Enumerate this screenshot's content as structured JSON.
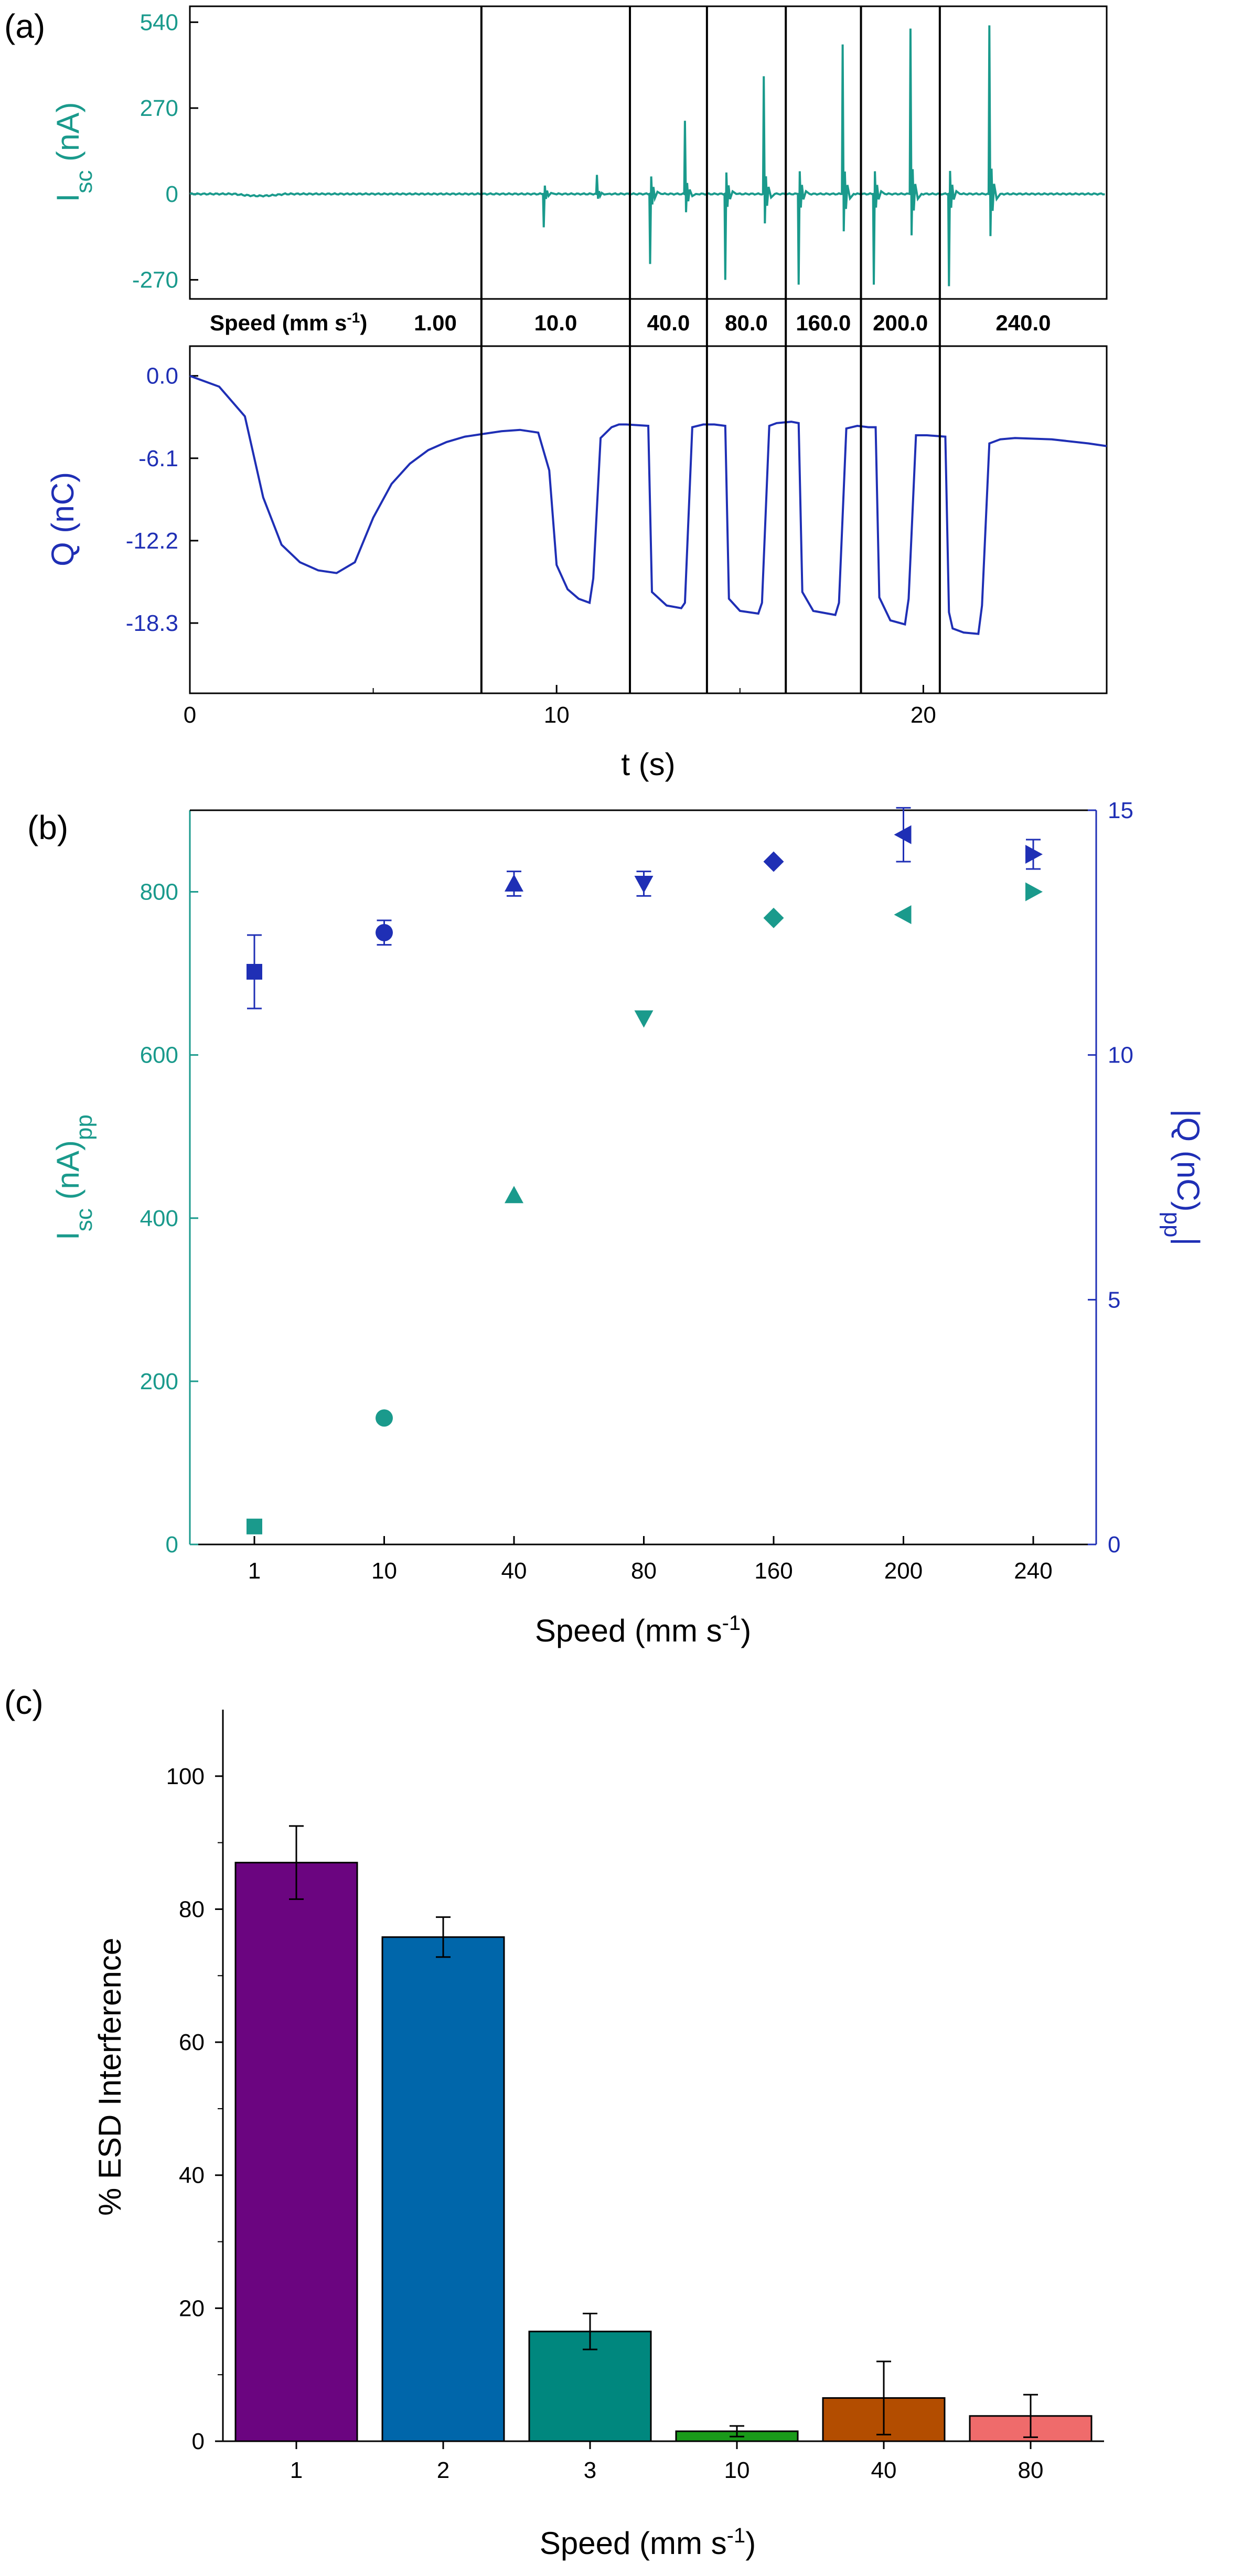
{
  "colors": {
    "teal": "#1a9a8c",
    "blue": "#1f2fb5",
    "axis": "#000000"
  },
  "panel_a": {
    "label": "(a)",
    "speed_row_label": "Speed (mm s",
    "speed_row_sup": "-1",
    "speed_row_close": ")",
    "speed_segments": [
      {
        "label": "1.00",
        "t_start": 0,
        "t_end": 7.95
      },
      {
        "label": "10.0",
        "t_start": 7.95,
        "t_end": 12.0
      },
      {
        "label": "40.0",
        "t_start": 12.0,
        "t_end": 14.1
      },
      {
        "label": "80.0",
        "t_start": 14.1,
        "t_end": 16.25
      },
      {
        "label": "160.0",
        "t_start": 16.25,
        "t_end": 18.3
      },
      {
        "label": "200.0",
        "t_start": 18.3,
        "t_end": 20.45
      },
      {
        "label": "240.0",
        "t_start": 20.45,
        "t_end": 25
      }
    ]
  },
  "panel_b": {
    "label": "(b)"
  },
  "panel_c": {
    "label": "(c)"
  },
  "chart_data": [
    {
      "type": "line",
      "panel": "a-top",
      "ylabel_main": "I",
      "ylabel_sub": "sc",
      "ylabel_rest": " (nA)",
      "xlim": [
        0,
        25
      ],
      "ylim": [
        -330,
        590
      ],
      "yticks": [
        540,
        270,
        0,
        -270
      ],
      "ytick_labels": [
        "540",
        "270",
        "0",
        "-270"
      ],
      "spikes": [
        {
          "t": 9.65,
          "pos": 0,
          "neg": -105
        },
        {
          "t": 11.1,
          "pos": 60,
          "neg": 0
        },
        {
          "t": 12.55,
          "pos": 0,
          "neg": -220
        },
        {
          "t": 13.5,
          "pos": 230,
          "neg": 0
        },
        {
          "t": 14.6,
          "pos": 0,
          "neg": -270
        },
        {
          "t": 15.65,
          "pos": 370,
          "neg": 0
        },
        {
          "t": 16.6,
          "pos": 0,
          "neg": -285
        },
        {
          "t": 17.8,
          "pos": 470,
          "neg": 0
        },
        {
          "t": 18.65,
          "pos": 0,
          "neg": -285
        },
        {
          "t": 19.65,
          "pos": 520,
          "neg": 0
        },
        {
          "t": 20.7,
          "pos": 0,
          "neg": -290
        },
        {
          "t": 21.8,
          "pos": 530,
          "neg": 0
        }
      ]
    },
    {
      "type": "line",
      "panel": "a-bottom",
      "ylabel": "Q (nC)",
      "xlabel": "t (s)",
      "xlim": [
        0,
        25
      ],
      "ylim": [
        -23.5,
        2.2
      ],
      "xticks": [
        0,
        10,
        20
      ],
      "yticks": [
        0.0,
        -6.1,
        -12.2,
        -18.3
      ],
      "ytick_labels": [
        "0.0",
        "-6.1",
        "-12.2",
        "-18.3"
      ],
      "x": [
        0,
        0.8,
        1.5,
        2.0,
        2.5,
        3.0,
        3.5,
        4.0,
        4.5,
        5.0,
        5.5,
        6.0,
        6.5,
        7.0,
        7.5,
        8.0,
        8.5,
        9.0,
        9.5,
        9.8,
        10.0,
        10.3,
        10.6,
        10.9,
        11.0,
        11.2,
        11.5,
        11.7,
        11.9,
        12.5,
        12.6,
        13.0,
        13.4,
        13.5,
        13.7,
        14.0,
        14.3,
        14.6,
        14.7,
        15.0,
        15.5,
        15.6,
        15.8,
        16.0,
        16.4,
        16.6,
        16.7,
        17.0,
        17.6,
        17.7,
        17.9,
        18.2,
        18.5,
        18.7,
        18.8,
        19.1,
        19.5,
        19.6,
        19.8,
        20.1,
        20.6,
        20.7,
        20.8,
        21.1,
        21.5,
        21.6,
        21.8,
        22.1,
        22.5,
        23.5,
        24.5,
        25.0
      ],
      "y": [
        0.0,
        -0.8,
        -3.0,
        -9.0,
        -12.5,
        -13.8,
        -14.4,
        -14.6,
        -13.8,
        -10.5,
        -8.0,
        -6.5,
        -5.5,
        -4.9,
        -4.5,
        -4.3,
        -4.1,
        -4.0,
        -4.2,
        -7.0,
        -14.0,
        -15.8,
        -16.5,
        -16.8,
        -15.0,
        -4.6,
        -3.8,
        -3.6,
        -3.6,
        -3.7,
        -16.0,
        -17.0,
        -17.2,
        -16.8,
        -3.8,
        -3.6,
        -3.6,
        -3.7,
        -16.5,
        -17.4,
        -17.6,
        -16.8,
        -3.7,
        -3.5,
        -3.4,
        -3.5,
        -16.0,
        -17.4,
        -17.7,
        -16.8,
        -3.9,
        -3.7,
        -3.8,
        -3.8,
        -16.4,
        -18.1,
        -18.4,
        -16.5,
        -4.4,
        -4.4,
        -4.5,
        -17.5,
        -18.7,
        -19.0,
        -19.1,
        -17.0,
        -5.0,
        -4.7,
        -4.6,
        -4.7,
        -5.0,
        -5.2
      ]
    },
    {
      "type": "scatter",
      "panel": "b",
      "xlabel": "Speed (mm s",
      "xlabel_sup": "-1",
      "xlabel_close": ")",
      "ylabel_main": "I",
      "ylabel_sub": "sc",
      "ylabel_rest": " (nA)",
      "ylabel_sub2": "pp",
      "y2label_main": "Q (nC)",
      "y2label_sub": "pp",
      "categories": [
        "1",
        "10",
        "40",
        "80",
        "160",
        "200",
        "240"
      ],
      "ylim": [
        0,
        900
      ],
      "yticks": [
        0,
        200,
        400,
        600,
        800
      ],
      "y2lim": [
        0,
        15
      ],
      "y2ticks": [
        0,
        5,
        10,
        15
      ],
      "series": [
        {
          "axis": "left",
          "color_key": "teal",
          "values": [
            22,
            155,
            428,
            645,
            768,
            772,
            800
          ],
          "markers": [
            "square",
            "circle",
            "triangle-up",
            "triangle-down",
            "diamond",
            "triangle-left",
            "triangle-right"
          ]
        },
        {
          "axis": "right",
          "color_key": "blue",
          "values": [
            11.7,
            12.5,
            13.5,
            13.5,
            13.95,
            14.5,
            14.1
          ],
          "errors": [
            0.75,
            0.25,
            0.25,
            0.25,
            0.0,
            0.55,
            0.3
          ],
          "markers": [
            "square",
            "circle",
            "triangle-up",
            "triangle-down",
            "diamond",
            "triangle-left",
            "triangle-right"
          ]
        }
      ]
    },
    {
      "type": "bar",
      "panel": "c",
      "xlabel": "Speed (mm s",
      "xlabel_sup": "-1",
      "xlabel_close": ")",
      "ylabel": "% ESD Interference",
      "categories": [
        "1",
        "2",
        "3",
        "10",
        "40",
        "80"
      ],
      "values": [
        87,
        75.8,
        16.5,
        1.5,
        6.5,
        3.8
      ],
      "errors": [
        5.5,
        3.0,
        2.7,
        0.8,
        5.5,
        3.2
      ],
      "colors": [
        "#6b0580",
        "#0066aa",
        "#00877e",
        "#1a9a1a",
        "#b34d00",
        "#ef6b6b"
      ],
      "ylim": [
        0,
        110
      ],
      "yticks": [
        0,
        20,
        40,
        60,
        80,
        100
      ]
    }
  ]
}
